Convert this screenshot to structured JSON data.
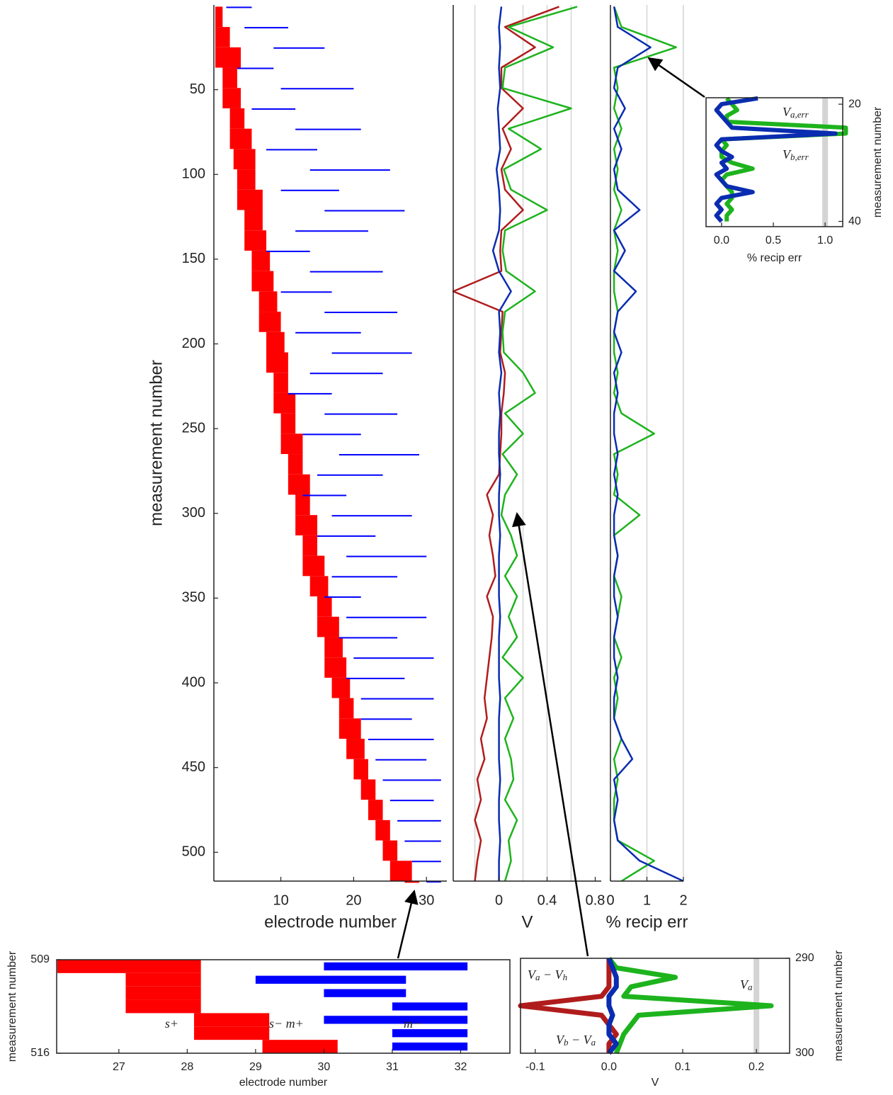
{
  "chart_data": [
    {
      "type": "range",
      "xlabel": "electrode number",
      "ylabel": "measurement number",
      "xlim": [
        0.8,
        32.8
      ],
      "xticks": [
        10,
        20,
        30
      ],
      "ylim": [
        0,
        517
      ],
      "yticks": [
        50,
        100,
        150,
        200,
        250,
        300,
        350,
        400,
        450,
        500
      ],
      "y_reversed": true,
      "x": [
        1,
        13,
        25,
        37,
        49,
        61,
        73,
        85,
        97,
        109,
        121,
        133,
        145,
        157,
        169,
        181,
        193,
        205,
        217,
        229,
        241,
        253,
        265,
        277,
        289,
        301,
        313,
        325,
        337,
        349,
        361,
        373,
        385,
        397,
        409,
        421,
        433,
        445,
        457,
        469,
        481,
        493,
        505,
        517
      ],
      "series": [
        {
          "color": "#ff0000",
          "values": [
            [
              1,
              2
            ],
            [
              1,
              3
            ],
            [
              1,
              4.5
            ],
            [
              2,
              4
            ],
            [
              2,
              4.5
            ],
            [
              3,
              5
            ],
            [
              3,
              6
            ],
            [
              3.5,
              6.5
            ],
            [
              4,
              6.5
            ],
            [
              4,
              7.5
            ],
            [
              5,
              7.5
            ],
            [
              5,
              8
            ],
            [
              6,
              8.5
            ],
            [
              6,
              9
            ],
            [
              7,
              9.5
            ],
            [
              7,
              10
            ],
            [
              8,
              10.5
            ],
            [
              8,
              11
            ],
            [
              9,
              11
            ],
            [
              9,
              12
            ],
            [
              10,
              12
            ],
            [
              10,
              13
            ],
            [
              11,
              13
            ],
            [
              11,
              14
            ],
            [
              12,
              14
            ],
            [
              12,
              15
            ],
            [
              13,
              15
            ],
            [
              13,
              16
            ],
            [
              14,
              16.5
            ],
            [
              15,
              17
            ],
            [
              15,
              18
            ],
            [
              16,
              18.5
            ],
            [
              16,
              19
            ],
            [
              17,
              19.5
            ],
            [
              18,
              20
            ],
            [
              18,
              21
            ],
            [
              19,
              21.5
            ],
            [
              20,
              22
            ],
            [
              21,
              23
            ],
            [
              22,
              24
            ],
            [
              23,
              25
            ],
            [
              24,
              26
            ],
            [
              25,
              28
            ],
            [
              27,
              29
            ]
          ]
        },
        {
          "color": "#0000ff",
          "values": [
            [
              2.5,
              6
            ],
            [
              5,
              11
            ],
            [
              9,
              16
            ],
            [
              4,
              9
            ],
            [
              10,
              20
            ],
            [
              6,
              12
            ],
            [
              12,
              21
            ],
            [
              8,
              15
            ],
            [
              14,
              25
            ],
            [
              10,
              18
            ],
            [
              16,
              27
            ],
            [
              12,
              22
            ],
            [
              8,
              14
            ],
            [
              14,
              24
            ],
            [
              10,
              17
            ],
            [
              16,
              26
            ],
            [
              12,
              21
            ],
            [
              17,
              28
            ],
            [
              14,
              24
            ],
            [
              11,
              17
            ],
            [
              16,
              26
            ],
            [
              13,
              21
            ],
            [
              18,
              29
            ],
            [
              15,
              24
            ],
            [
              13,
              19
            ],
            [
              17,
              28
            ],
            [
              15,
              23
            ],
            [
              19,
              30
            ],
            [
              17,
              26
            ],
            [
              16,
              21
            ],
            [
              19,
              30
            ],
            [
              18,
              26
            ],
            [
              20,
              31
            ],
            [
              19,
              27
            ],
            [
              21,
              31
            ],
            [
              21,
              28
            ],
            [
              22,
              31
            ],
            [
              23,
              30
            ],
            [
              24,
              32
            ],
            [
              25,
              31
            ],
            [
              26,
              32
            ],
            [
              27,
              32
            ],
            [
              28,
              32
            ],
            [
              30,
              32
            ]
          ]
        }
      ]
    },
    {
      "type": "line",
      "xlabel": "V",
      "xlim": [
        -0.38,
        0.85
      ],
      "xticks": [
        0,
        0.4,
        0.8
      ],
      "grid_x": [
        -0.2,
        0.2,
        0.4,
        0.6
      ],
      "ylim": [
        0,
        517
      ],
      "y_reversed": true,
      "y": [
        1,
        13,
        25,
        37,
        49,
        61,
        73,
        85,
        97,
        109,
        121,
        133,
        145,
        157,
        169,
        181,
        193,
        205,
        217,
        229,
        241,
        253,
        265,
        277,
        289,
        301,
        313,
        325,
        337,
        349,
        361,
        373,
        385,
        397,
        409,
        421,
        433,
        445,
        457,
        469,
        481,
        493,
        505,
        517
      ],
      "series": [
        {
          "color": "#b01c1c",
          "values": [
            0.5,
            0.05,
            0.3,
            0.02,
            0.02,
            0.2,
            0.03,
            0.1,
            0.02,
            0.05,
            0.2,
            0.02,
            0.01,
            0.02,
            -0.38,
            0.03,
            0.02,
            0.01,
            0.05,
            0.04,
            0.02,
            0.02,
            0.01,
            0.0,
            -0.1,
            -0.05,
            -0.08,
            -0.05,
            -0.03,
            -0.1,
            -0.05,
            -0.06,
            -0.08,
            -0.1,
            -0.12,
            -0.1,
            -0.15,
            -0.12,
            -0.18,
            -0.15,
            -0.2,
            -0.15,
            -0.18,
            -0.2
          ]
        },
        {
          "color": "#1db31d",
          "values": [
            0.65,
            0.08,
            0.45,
            0.05,
            0.03,
            0.6,
            0.08,
            0.35,
            0.04,
            0.1,
            0.4,
            0.05,
            0.03,
            0.06,
            0.3,
            0.05,
            0.03,
            0.04,
            0.2,
            0.3,
            0.05,
            0.2,
            0.03,
            0.15,
            0.05,
            0.02,
            0.1,
            0.15,
            0.05,
            0.15,
            0.08,
            0.15,
            0.03,
            0.2,
            0.05,
            0.12,
            0.05,
            0.1,
            0.12,
            0.05,
            0.15,
            0.08,
            0.1,
            0.05
          ]
        },
        {
          "color": "#0a2cb0",
          "values": [
            0.02,
            0.0,
            0.01,
            0.0,
            0.01,
            -0.01,
            0.0,
            0.01,
            -0.02,
            0.0,
            0.01,
            0.0,
            -0.05,
            0.0,
            0.1,
            0.0,
            0.01,
            0.0,
            0.02,
            0.0,
            0.01,
            0.0,
            0.0,
            0.01,
            0.0,
            0.0,
            0.01,
            0.0,
            0.0,
            0.0,
            0.01,
            0.0,
            0.0,
            0.0,
            0.01,
            0.0,
            0.0,
            0.0,
            0.01,
            0.0,
            0.0,
            0.01,
            0.0,
            0.0
          ]
        }
      ]
    },
    {
      "type": "line",
      "xlabel": "% recip err",
      "xlim": [
        0,
        2
      ],
      "xticks": [
        0,
        1,
        2
      ],
      "grid_x": [
        1,
        2
      ],
      "ylim": [
        0,
        517
      ],
      "y_reversed": true,
      "y": [
        1,
        13,
        25,
        37,
        49,
        61,
        73,
        85,
        97,
        109,
        121,
        133,
        145,
        157,
        169,
        181,
        193,
        205,
        217,
        229,
        241,
        253,
        265,
        277,
        289,
        301,
        313,
        325,
        337,
        349,
        361,
        373,
        385,
        397,
        409,
        421,
        433,
        445,
        457,
        469,
        481,
        493,
        505,
        517
      ],
      "series": [
        {
          "color": "#1db31d",
          "values": [
            0.1,
            0.3,
            1.8,
            0.1,
            0.2,
            0.1,
            0.3,
            0.1,
            0.2,
            0.1,
            0.3,
            0.1,
            0.2,
            0.1,
            0.1,
            0.2,
            0.1,
            0.1,
            0.2,
            0.1,
            0.3,
            1.2,
            0.1,
            0.2,
            0.1,
            0.8,
            0.1,
            0.2,
            0.1,
            0.3,
            0.2,
            0.1,
            0.3,
            0.1,
            0.2,
            0.1,
            0.3,
            0.1,
            0.2,
            0.1,
            0.1,
            0.2,
            1.2,
            0.3
          ]
        },
        {
          "color": "#0a2cb0",
          "values": [
            0.1,
            0.2,
            1.1,
            0.2,
            0.1,
            0.4,
            0.1,
            0.3,
            0.1,
            0.2,
            0.8,
            0.1,
            0.4,
            0.1,
            0.7,
            0.2,
            0.1,
            0.3,
            0.1,
            0.2,
            0.1,
            0.1,
            0.2,
            0.1,
            0.2,
            0.1,
            0.1,
            0.2,
            0.1,
            0.1,
            0.2,
            0.1,
            0.1,
            0.2,
            0.1,
            0.1,
            0.3,
            0.6,
            0.1,
            0.2,
            0.1,
            0.2,
            0.8,
            2.0
          ]
        }
      ]
    },
    {
      "type": "line",
      "xlabel": "% recip err",
      "ylabel": "measurement number",
      "xlim": [
        -0.15,
        1.17
      ],
      "xticks": [
        {
          "value": 0,
          "label": "0.0"
        },
        {
          "value": 0.5,
          "label": "0.5"
        },
        {
          "value": 1,
          "label": "1.0"
        }
      ],
      "grid_x": [
        1
      ],
      "ylim": [
        18.9,
        40.9
      ],
      "yticks": [
        20,
        40
      ],
      "y_reversed": true,
      "y": [
        19,
        20,
        21,
        22,
        23,
        24,
        25,
        26,
        27,
        28,
        29,
        30,
        31,
        32,
        33,
        34,
        35,
        36,
        37,
        38,
        39,
        40
      ],
      "series": [
        {
          "color": "#1db31d",
          "values": [
            0.05,
            0.1,
            0.15,
            0.05,
            0.05,
            1.2,
            1.2,
            0.0,
            0.05,
            0.0,
            0.0,
            0.1,
            0.3,
            0.05,
            0.0,
            0.05,
            0.1,
            0.1,
            0.05,
            0.1,
            0.05,
            0.05
          ]
        },
        {
          "color": "#0a2cb0",
          "values": [
            0.35,
            0.0,
            -0.05,
            0.0,
            0.05,
            0.1,
            1.1,
            0.0,
            -0.05,
            0.0,
            0.1,
            0.0,
            0.05,
            -0.05,
            0.0,
            0.05,
            0.3,
            0.0,
            -0.05,
            0.0,
            -0.05,
            0.0
          ]
        }
      ],
      "annotations": [
        [
          "V",
          "a,err"
        ],
        [
          "V",
          "b,err"
        ]
      ]
    },
    {
      "type": "range",
      "xlabel": "electrode number",
      "ylabel": "measurement number",
      "xlim": [
        26.09,
        32.72
      ],
      "xticks": [
        27,
        28,
        29,
        30,
        31,
        32
      ],
      "ylim": [
        509,
        516
      ],
      "yticks": [
        509,
        516
      ],
      "y_reversed": true,
      "x": [
        509,
        510,
        511,
        512,
        513,
        514,
        515
      ],
      "series": [
        {
          "color": "#ff0000",
          "values": [
            [
              26.1,
              28.2
            ],
            [
              27.1,
              28.2
            ],
            [
              27.1,
              28.2
            ],
            [
              27.1,
              28.2
            ],
            [
              28.1,
              29.2
            ],
            [
              28.1,
              29.2
            ],
            [
              29.1,
              30.2
            ]
          ]
        },
        {
          "color": "#0000ff",
          "values": [
            [
              30,
              32.1
            ],
            [
              29,
              31.2
            ],
            [
              30,
              31.2
            ],
            [
              31,
              32.1
            ],
            [
              30,
              32.1
            ],
            [
              31,
              32.1
            ],
            [
              31,
              32.1
            ]
          ]
        }
      ],
      "annotations": [
        [
          "s+"
        ],
        [
          "s− m+"
        ],
        [
          "m−"
        ]
      ]
    },
    {
      "type": "line",
      "xlabel": "V",
      "ylabel": "measurement number",
      "xlim": [
        -0.12,
        0.245
      ],
      "xticks": [
        -0.1,
        {
          "value": 0,
          "label": "0.0"
        },
        0.1,
        0.2
      ],
      "grid_x": [
        0.2
      ],
      "ylim": [
        290,
        300
      ],
      "yticks": [
        290,
        300
      ],
      "y_reversed": true,
      "y": [
        290,
        291,
        292,
        293,
        294,
        295,
        296,
        297,
        298,
        299,
        300
      ],
      "series": [
        {
          "color": "#b01c1c",
          "values": [
            0.0,
            0.0,
            0.0,
            0.0,
            -0.01,
            -0.12,
            -0.01,
            0.0,
            0.01,
            0.0,
            0.0
          ]
        },
        {
          "color": "#1db31d",
          "values": [
            0.0,
            0.01,
            0.09,
            0.03,
            0.02,
            0.22,
            0.04,
            0.03,
            0.02,
            0.015,
            0.01
          ]
        },
        {
          "color": "#0a2cb0",
          "values": [
            0.0,
            0.005,
            0.01,
            0.01,
            0.0,
            0.0,
            0.005,
            0.0,
            0.0,
            0.01,
            0.0
          ]
        }
      ],
      "annotations": [
        [
          "V",
          "a",
          " − V",
          "h"
        ],
        [
          "V",
          "a"
        ],
        [
          "V",
          "b",
          " − V",
          "a"
        ]
      ]
    }
  ]
}
